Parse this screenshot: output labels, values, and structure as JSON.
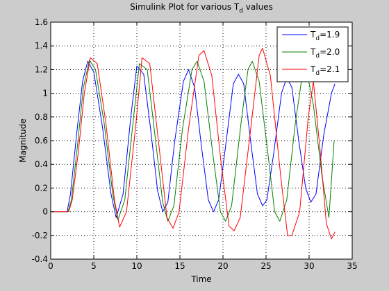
{
  "chart_data": {
    "type": "line",
    "title_main": "Simulink Plot for various T",
    "title_sub": "d",
    "title_tail": " values",
    "xlabel": "Time",
    "ylabel": "Magnitude",
    "xlim": [
      0,
      35
    ],
    "ylim": [
      -0.4,
      1.6
    ],
    "xticks": [
      0,
      5,
      10,
      15,
      20,
      25,
      30,
      35
    ],
    "yticks": [
      -0.4,
      -0.2,
      0,
      0.2,
      0.4,
      0.6,
      0.8,
      1,
      1.2,
      1.4,
      1.6
    ],
    "xtick_labels": [
      "0",
      "5",
      "10",
      "15",
      "20",
      "25",
      "30",
      "35"
    ],
    "ytick_labels": [
      "-0.4",
      "-0.2",
      "0",
      "0.2",
      "0.4",
      "0.6",
      "0.8",
      "1",
      "1.2",
      "1.4",
      "1.6"
    ],
    "grid": true,
    "legend_position": "top-right",
    "background": "#cccccc",
    "axes_color": "#ffffff",
    "series": [
      {
        "name_main": "T",
        "name_sub": "d",
        "name_tail": "=1.9",
        "color": "#0000ff",
        "x": [
          0,
          1.9,
          2.3,
          3.0,
          3.7,
          4.3,
          5.0,
          6.0,
          7.0,
          7.6,
          8.4,
          9.3,
          10.0,
          10.8,
          11.6,
          12.4,
          13.0,
          13.6,
          14.4,
          15.4,
          16.0,
          16.7,
          17.5,
          18.3,
          18.9,
          19.5,
          20.3,
          21.2,
          21.8,
          22.4,
          23.2,
          24.0,
          24.6,
          25.1,
          25.9,
          26.8,
          27.4,
          28.0,
          28.8,
          29.6,
          30.2,
          30.8,
          31.7,
          32.6,
          33.0
        ],
        "y": [
          0,
          0,
          0.15,
          0.65,
          1.1,
          1.27,
          1.18,
          0.72,
          0.15,
          -0.05,
          0.15,
          0.8,
          1.23,
          1.16,
          0.7,
          0.18,
          0.0,
          0.08,
          0.6,
          1.1,
          1.2,
          1.05,
          0.55,
          0.1,
          0.0,
          0.1,
          0.55,
          1.08,
          1.16,
          1.08,
          0.6,
          0.15,
          0.05,
          0.1,
          0.5,
          1.0,
          1.13,
          1.05,
          0.6,
          0.2,
          0.08,
          0.15,
          0.65,
          1.0,
          1.08
        ]
      },
      {
        "name_main": "T",
        "name_sub": "d",
        "name_tail": "=2.0",
        "color": "#008000",
        "x": [
          0,
          2.0,
          2.4,
          3.1,
          3.8,
          4.5,
          5.2,
          6.2,
          7.2,
          7.8,
          8.6,
          9.6,
          10.3,
          11.2,
          12.1,
          13.0,
          13.6,
          14.3,
          15.3,
          16.4,
          17.0,
          17.8,
          18.8,
          19.7,
          20.3,
          21.0,
          22.1,
          22.9,
          23.4,
          24.2,
          25.2,
          26.0,
          26.6,
          27.4,
          28.4,
          29.2,
          29.7,
          30.5,
          31.5,
          32.3,
          32.9
        ],
        "y": [
          0,
          0,
          0.1,
          0.55,
          1.05,
          1.28,
          1.2,
          0.75,
          0.15,
          -0.07,
          0.1,
          0.78,
          1.25,
          1.2,
          0.65,
          0.08,
          -0.08,
          0.05,
          0.7,
          1.2,
          1.27,
          1.1,
          0.5,
          0.0,
          -0.08,
          0.05,
          0.75,
          1.2,
          1.27,
          1.1,
          0.5,
          0.0,
          -0.08,
          0.1,
          0.75,
          1.15,
          1.2,
          0.9,
          0.3,
          -0.05,
          0.6
        ]
      },
      {
        "name_main": "T",
        "name_sub": "d",
        "name_tail": "=2.1",
        "color": "#ff0000",
        "x": [
          0,
          2.1,
          2.5,
          3.2,
          3.9,
          4.6,
          5.4,
          6.4,
          7.4,
          8.0,
          8.8,
          9.9,
          10.6,
          11.5,
          12.5,
          13.5,
          14.2,
          14.9,
          16.0,
          17.2,
          17.8,
          18.7,
          19.8,
          20.7,
          21.3,
          22.0,
          23.3,
          24.2,
          24.6,
          25.5,
          26.7,
          27.5,
          28.0,
          28.9,
          29.9,
          30.5,
          31.3,
          32.0,
          32.6,
          33.0
        ],
        "y": [
          0,
          0,
          0.1,
          0.5,
          1.0,
          1.3,
          1.25,
          0.75,
          0.1,
          -0.13,
          0.0,
          0.75,
          1.3,
          1.25,
          0.6,
          -0.05,
          -0.14,
          0.0,
          0.7,
          1.32,
          1.36,
          1.15,
          0.4,
          -0.12,
          -0.16,
          -0.05,
          0.75,
          1.32,
          1.38,
          1.15,
          0.3,
          -0.2,
          -0.2,
          0.0,
          0.8,
          1.1,
          0.5,
          -0.1,
          -0.23,
          -0.17
        ]
      }
    ]
  }
}
